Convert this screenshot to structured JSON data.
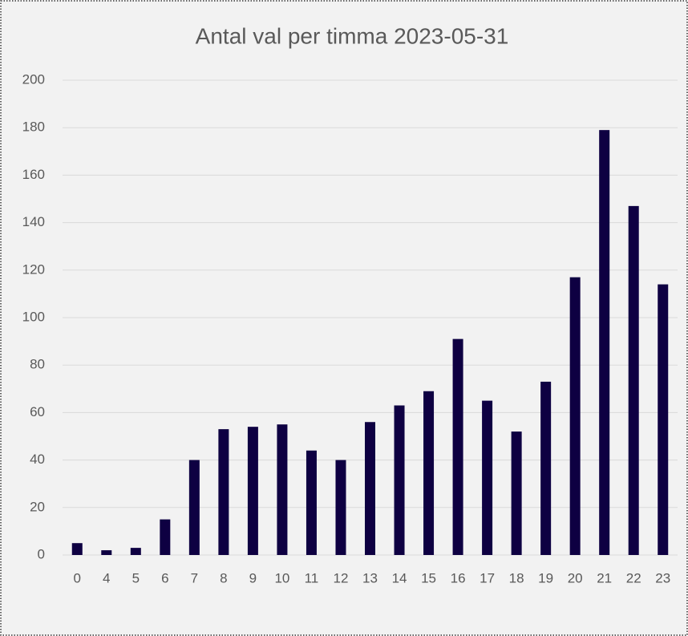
{
  "chart_data": {
    "type": "bar",
    "title": "Antal val per timma 2023-05-31",
    "categories": [
      "0",
      "4",
      "5",
      "6",
      "7",
      "8",
      "9",
      "10",
      "11",
      "12",
      "13",
      "14",
      "15",
      "16",
      "17",
      "18",
      "19",
      "20",
      "21",
      "22",
      "23"
    ],
    "values": [
      5,
      2,
      3,
      15,
      40,
      53,
      54,
      55,
      44,
      40,
      56,
      63,
      69,
      91,
      65,
      52,
      73,
      117,
      179,
      147,
      114
    ],
    "color": "#0e0042",
    "ylim": [
      0,
      200
    ],
    "yticks": [
      0,
      20,
      40,
      60,
      80,
      100,
      120,
      140,
      160,
      180,
      200
    ],
    "grid": true
  }
}
